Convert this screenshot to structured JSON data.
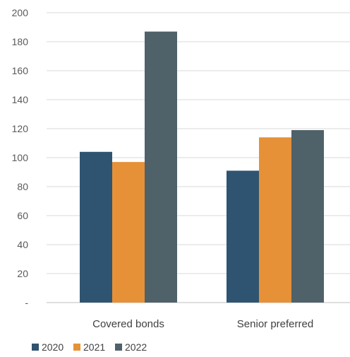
{
  "chart_data": {
    "type": "bar",
    "categories": [
      "Covered bonds",
      "Senior preferred"
    ],
    "series": [
      {
        "name": "2020",
        "values": [
          104,
          91
        ],
        "color": "#2f5471"
      },
      {
        "name": "2021",
        "values": [
          97,
          114
        ],
        "color": "#e69138"
      },
      {
        "name": "2022",
        "values": [
          187,
          119
        ],
        "color": "#4f6169"
      }
    ],
    "ylim": [
      0,
      200
    ],
    "yticks": [
      0,
      20,
      40,
      60,
      80,
      100,
      120,
      140,
      160,
      180,
      200
    ],
    "ytick_labels": [
      "-",
      "20",
      "40",
      "60",
      "80",
      "100",
      "120",
      "140",
      "160",
      "180",
      "200"
    ],
    "grid": true,
    "legend_position": "bottom-left",
    "title": "",
    "xlabel": "",
    "ylabel": ""
  }
}
